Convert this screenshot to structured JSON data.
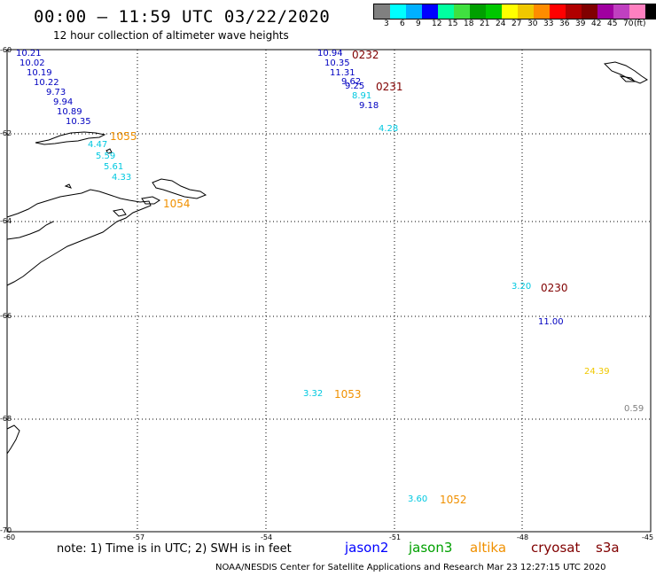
{
  "header": {
    "title": "00:00 – 11:59 UTC 03/22/2020",
    "subtitle": "12 hour collection of altimeter wave heights"
  },
  "legend": {
    "colors": [
      "#808080",
      "#00ffff",
      "#00b0ff",
      "#0000ff",
      "#00ffa0",
      "#40e040",
      "#00a000",
      "#00c800",
      "#ffff00",
      "#f0c800",
      "#ff8c00",
      "#ff0000",
      "#b00000",
      "#800000",
      "#a000a0",
      "#c040c0",
      "#ff80c0",
      "#000000"
    ],
    "labels": [
      "3",
      "6",
      "9",
      "12",
      "15",
      "18",
      "21",
      "24",
      "27",
      "30",
      "33",
      "36",
      "39",
      "42",
      "45",
      "70",
      "(ft)"
    ]
  },
  "axes": {
    "lat_labels": [
      "-60",
      "-62",
      "-64",
      "-66",
      "-68",
      "-70"
    ],
    "lon_labels": [
      "-60",
      "-57",
      "-54",
      "-51",
      "-48",
      "-45"
    ]
  },
  "observations": [
    {
      "text": "10.21",
      "color": "#0000c0"
    },
    {
      "text": "10.02",
      "color": "#0000c0"
    },
    {
      "text": "10.19",
      "color": "#0000c0"
    },
    {
      "text": "10.22",
      "color": "#0000c0"
    },
    {
      "text": "9.73",
      "color": "#0000c0"
    },
    {
      "text": "9.94",
      "color": "#0000c0"
    },
    {
      "text": "10.89",
      "color": "#0000c0"
    },
    {
      "text": "10.35",
      "color": "#0000c0"
    },
    {
      "text": "4.47",
      "color": "#00c8e0"
    },
    {
      "text": "5.59",
      "color": "#00c8e0"
    },
    {
      "text": "5.61",
      "color": "#00c8e0"
    },
    {
      "text": "4.33",
      "color": "#00c8e0"
    },
    {
      "text": "10.94",
      "color": "#0000c0"
    },
    {
      "text": "10.35",
      "color": "#0000c0"
    },
    {
      "text": "11.31",
      "color": "#0000c0"
    },
    {
      "text": "9.62",
      "color": "#0000c0"
    },
    {
      "text": "9.25",
      "color": "#0000c0"
    },
    {
      "text": "8.91",
      "color": "#00c8e0"
    },
    {
      "text": "9.18",
      "color": "#0000c0"
    },
    {
      "text": "4.28",
      "color": "#00c8e0"
    },
    {
      "text": "3.20",
      "color": "#00c8e0"
    },
    {
      "text": "11.00",
      "color": "#0000c0"
    },
    {
      "text": "24.39",
      "color": "#f0c800"
    },
    {
      "text": "0.59",
      "color": "#808080"
    },
    {
      "text": "3.32",
      "color": "#00c8e0"
    },
    {
      "text": "3.60",
      "color": "#00c8e0"
    }
  ],
  "pass_times": [
    {
      "text": "1055",
      "color": "#f09000"
    },
    {
      "text": "1054",
      "color": "#f09000"
    },
    {
      "text": "0232",
      "color": "#800000"
    },
    {
      "text": "0231",
      "color": "#800000"
    },
    {
      "text": "0230",
      "color": "#800000"
    },
    {
      "text": "1053",
      "color": "#f09000"
    },
    {
      "text": "1052",
      "color": "#f09000"
    }
  ],
  "footer": {
    "note": "note: 1) Time is in UTC; 2) SWH is in feet",
    "satellites": [
      {
        "name": "jason2",
        "color": "#0000ff"
      },
      {
        "name": "jason3",
        "color": "#00a000"
      },
      {
        "name": "altika",
        "color": "#f09000"
      },
      {
        "name": "cryosat",
        "color": "#800000"
      },
      {
        "name": "s3a",
        "color": "#800000"
      }
    ],
    "credit": "NOAA/NESDIS Center for Satellite Applications and Research     Mar 23 12:27:15 UTC 2020"
  }
}
